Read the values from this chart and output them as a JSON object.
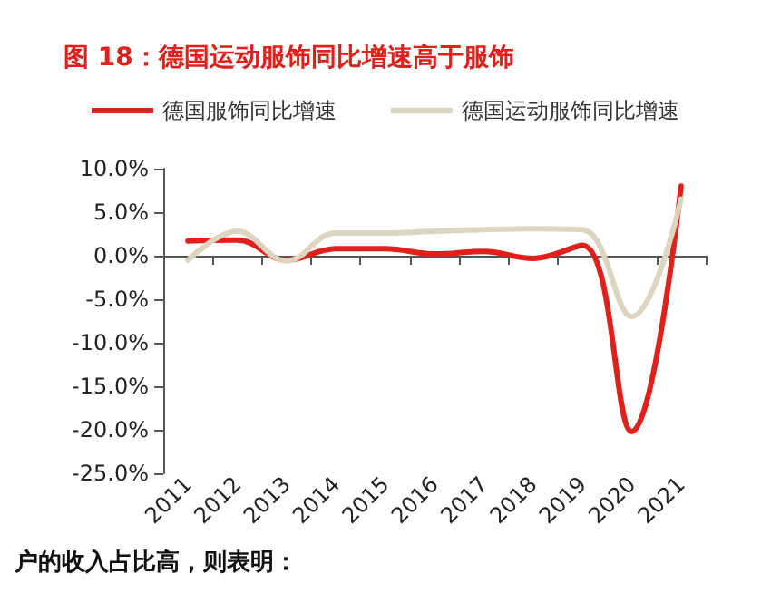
{
  "chart_data": {
    "type": "line",
    "title": "图 18：德国运动服饰同比增速高于服饰",
    "categories": [
      "2011",
      "2012",
      "2013",
      "2014",
      "2015",
      "2016",
      "2017",
      "2018",
      "2019",
      "2020",
      "2021"
    ],
    "series": [
      {
        "name": "德国服饰同比增速",
        "color": "#e0201b",
        "values": [
          1.7,
          1.8,
          -0.5,
          0.8,
          0.8,
          0.2,
          0.5,
          -0.3,
          1.2,
          -20.2,
          8.0
        ]
      },
      {
        "name": "德国运动服饰同比增速",
        "color": "#ddd5bf",
        "values": [
          -0.5,
          2.8,
          -0.6,
          2.6,
          2.6,
          2.8,
          3.0,
          3.1,
          3.0,
          -7.0,
          6.5
        ]
      }
    ],
    "ylim": [
      -25,
      10
    ],
    "yticks": [
      {
        "value": -25,
        "label": "-25.0%"
      },
      {
        "value": -20,
        "label": "-20.0%"
      },
      {
        "value": -15,
        "label": "-15.0%"
      },
      {
        "value": -10,
        "label": "-10.0%"
      },
      {
        "value": -5,
        "label": "-5.0%"
      },
      {
        "value": 0,
        "label": "0.0%"
      },
      {
        "value": 5,
        "label": "5.0%"
      },
      {
        "value": 10,
        "label": "10.0%"
      }
    ],
    "legend": "top",
    "marker": "none",
    "line_style": "solid",
    "annotations": [
      "户的收入占比高，则表明："
    ]
  }
}
